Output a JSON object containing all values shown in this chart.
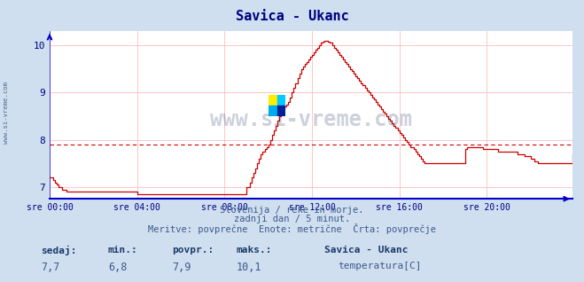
{
  "title": "Savica - Ukanc",
  "title_color": "#000080",
  "bg_color": "#d0dff0",
  "plot_bg_color": "#ffffff",
  "line_color": "#cc0000",
  "avg_line_color": "#cc0000",
  "avg_value": 7.9,
  "xlabel_color": "#000080",
  "ylabel_color": "#000080",
  "grid_color": "#ffb0b0",
  "axis_color": "#0000cc",
  "text_color": "#3a5a8a",
  "watermark_color": "#1a3060",
  "xlim": [
    0,
    287
  ],
  "ylim": [
    6.75,
    10.3
  ],
  "yticks": [
    7,
    8,
    9,
    10
  ],
  "xticks": [
    0,
    48,
    96,
    144,
    192,
    240
  ],
  "xtick_labels": [
    "sre 00:00",
    "sre 04:00",
    "sre 08:00",
    "sre 12:00",
    "sre 16:00",
    "sre 20:00"
  ],
  "subtitle1": "Slovenija / reke in morje.",
  "subtitle2": "zadnji dan / 5 minut.",
  "subtitle3": "Meritve: povprečne  Enote: metrične  Črta: povprečje",
  "label_sedaj": "sedaj:",
  "label_min": "min.:",
  "label_povpr": "povpr.:",
  "label_maks": "maks.:",
  "val_sedaj": "7,7",
  "val_min": "6,8",
  "val_povpr": "7,9",
  "val_maks": "10,1",
  "station_name": "Savica - Ukanc",
  "sensor_label": "temperatura[C]",
  "watermark": "www.si-vreme.com",
  "left_label": "www.si-vreme.com",
  "y_data": [
    7.2,
    7.2,
    7.15,
    7.1,
    7.05,
    7.0,
    7.0,
    6.95,
    6.95,
    6.9,
    6.9,
    6.9,
    6.9,
    6.9,
    6.9,
    6.9,
    6.9,
    6.9,
    6.9,
    6.9,
    6.9,
    6.9,
    6.9,
    6.9,
    6.9,
    6.9,
    6.9,
    6.9,
    6.9,
    6.9,
    6.9,
    6.9,
    6.9,
    6.9,
    6.9,
    6.9,
    6.9,
    6.9,
    6.9,
    6.9,
    6.9,
    6.9,
    6.9,
    6.9,
    6.9,
    6.9,
    6.9,
    6.9,
    6.85,
    6.85,
    6.85,
    6.85,
    6.85,
    6.85,
    6.85,
    6.85,
    6.85,
    6.85,
    6.85,
    6.85,
    6.85,
    6.85,
    6.85,
    6.85,
    6.85,
    6.85,
    6.85,
    6.85,
    6.85,
    6.85,
    6.85,
    6.85,
    6.85,
    6.85,
    6.85,
    6.85,
    6.85,
    6.85,
    6.85,
    6.85,
    6.85,
    6.85,
    6.85,
    6.85,
    6.85,
    6.85,
    6.85,
    6.85,
    6.85,
    6.85,
    6.85,
    6.85,
    6.85,
    6.85,
    6.85,
    6.85,
    6.85,
    6.85,
    6.85,
    6.85,
    6.85,
    6.85,
    6.85,
    6.85,
    6.85,
    6.85,
    6.85,
    6.85,
    7.0,
    7.0,
    7.1,
    7.2,
    7.3,
    7.4,
    7.5,
    7.6,
    7.7,
    7.75,
    7.8,
    7.85,
    7.9,
    8.0,
    8.1,
    8.2,
    8.3,
    8.4,
    8.5,
    8.6,
    8.65,
    8.7,
    8.75,
    8.8,
    8.9,
    9.0,
    9.1,
    9.2,
    9.3,
    9.4,
    9.5,
    9.55,
    9.6,
    9.65,
    9.7,
    9.75,
    9.8,
    9.85,
    9.9,
    9.95,
    10.0,
    10.05,
    10.08,
    10.1,
    10.1,
    10.08,
    10.05,
    10.0,
    9.95,
    9.9,
    9.85,
    9.8,
    9.75,
    9.7,
    9.65,
    9.6,
    9.55,
    9.5,
    9.45,
    9.4,
    9.35,
    9.3,
    9.25,
    9.2,
    9.15,
    9.1,
    9.05,
    9.0,
    8.95,
    8.9,
    8.85,
    8.8,
    8.75,
    8.7,
    8.65,
    8.6,
    8.55,
    8.5,
    8.45,
    8.4,
    8.35,
    8.3,
    8.25,
    8.2,
    8.15,
    8.1,
    8.05,
    8.0,
    7.95,
    7.9,
    7.85,
    7.85,
    7.8,
    7.75,
    7.7,
    7.65,
    7.6,
    7.55,
    7.5,
    7.5,
    7.5,
    7.5,
    7.5,
    7.5,
    7.5,
    7.5,
    7.5,
    7.5,
    7.5,
    7.5,
    7.5,
    7.5,
    7.5,
    7.5,
    7.5,
    7.5,
    7.5,
    7.5,
    7.5,
    7.5,
    7.8,
    7.85,
    7.85,
    7.85,
    7.85,
    7.85,
    7.85,
    7.85,
    7.85,
    7.85,
    7.8,
    7.8,
    7.8,
    7.8,
    7.8,
    7.8,
    7.8,
    7.8,
    7.75,
    7.75,
    7.75,
    7.75,
    7.75,
    7.75,
    7.75,
    7.75,
    7.75,
    7.75,
    7.75,
    7.7,
    7.7,
    7.7,
    7.7,
    7.65,
    7.65,
    7.65,
    7.6,
    7.6,
    7.55,
    7.55,
    7.5,
    7.5,
    7.5,
    7.5,
    7.5,
    7.5,
    7.5,
    7.5,
    7.5,
    7.5,
    7.5,
    7.5,
    7.5,
    7.5,
    7.5,
    7.5,
    7.5,
    7.5,
    7.5,
    7.7
  ]
}
